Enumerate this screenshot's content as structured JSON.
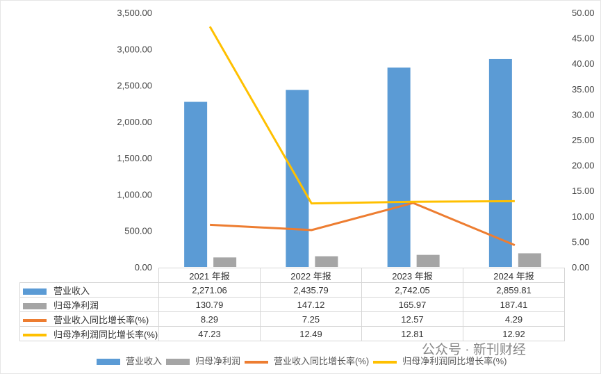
{
  "chart_data": {
    "type": "bar+line",
    "categories": [
      "2021 年报",
      "2022 年报",
      "2023 年报",
      "2024 年报"
    ],
    "series": [
      {
        "name": "营业收入",
        "type": "bar",
        "axis": "left",
        "color": "#5b9bd5",
        "values": [
          2271.06,
          2435.79,
          2742.05,
          2859.81
        ],
        "display": [
          "2,271.06",
          "2,435.79",
          "2,742.05",
          "2,859.81"
        ]
      },
      {
        "name": "归母净利润",
        "type": "bar",
        "axis": "left",
        "color": "#a5a5a5",
        "values": [
          130.79,
          147.12,
          165.97,
          187.41
        ],
        "display": [
          "130.79",
          "147.12",
          "165.97",
          "187.41"
        ]
      },
      {
        "name": "营业收入同比增长率(%)",
        "type": "line",
        "axis": "right",
        "color": "#ed7d31",
        "values": [
          8.29,
          7.25,
          12.57,
          4.29
        ],
        "display": [
          "8.29",
          "7.25",
          "12.57",
          "4.29"
        ]
      },
      {
        "name": "归母净利润同比增长率(%)",
        "type": "line",
        "axis": "right",
        "color": "#ffc000",
        "values": [
          47.23,
          12.49,
          12.81,
          12.92
        ],
        "display": [
          "47.23",
          "12.49",
          "12.81",
          "12.92"
        ]
      }
    ],
    "left_axis": {
      "range": [
        0,
        3500
      ],
      "ticks": [
        "0.00",
        "500.00",
        "1,000.00",
        "1,500.00",
        "2,000.00",
        "2,500.00",
        "3,000.00",
        "3,500.00"
      ]
    },
    "right_axis": {
      "range": [
        0,
        50
      ],
      "ticks": [
        "0.00",
        "5.00",
        "10.00",
        "15.00",
        "20.00",
        "25.00",
        "30.00",
        "35.00",
        "40.00",
        "45.00",
        "50.00"
      ]
    },
    "grid": false,
    "legend": "bottom",
    "data_table": true
  },
  "watermark": "公众号 · 新刊财经"
}
